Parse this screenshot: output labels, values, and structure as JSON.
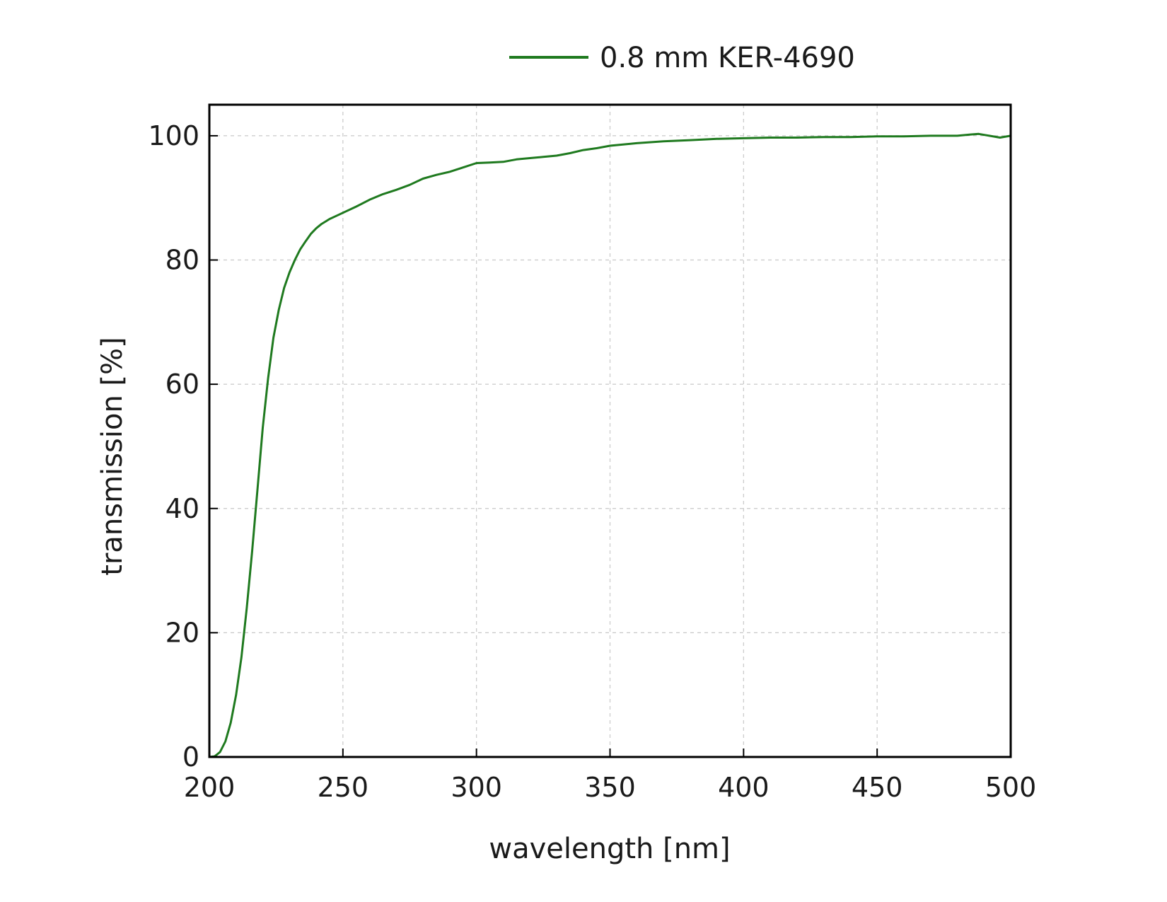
{
  "chart_data": {
    "type": "line",
    "title": "",
    "xlabel": "wavelength [nm]",
    "ylabel": "transmission [%]",
    "xlim": [
      200,
      500
    ],
    "ylim": [
      0,
      105
    ],
    "xticks": [
      200,
      250,
      300,
      350,
      400,
      450,
      500
    ],
    "yticks": [
      0,
      20,
      40,
      60,
      80,
      100
    ],
    "grid": true,
    "grid_style": "dashed",
    "legend_position": "top-center",
    "series": [
      {
        "name": "0.8 mm KER-4690",
        "color": "#1f7a1f",
        "x": [
          200,
          202,
          204,
          206,
          208,
          210,
          212,
          214,
          216,
          218,
          220,
          222,
          224,
          226,
          228,
          230,
          232,
          234,
          236,
          238,
          240,
          242,
          245,
          248,
          250,
          255,
          260,
          265,
          270,
          275,
          280,
          285,
          290,
          295,
          300,
          305,
          310,
          315,
          320,
          325,
          330,
          335,
          340,
          345,
          350,
          360,
          370,
          380,
          390,
          400,
          410,
          420,
          430,
          440,
          450,
          460,
          470,
          480,
          485,
          488,
          492,
          496,
          500
        ],
        "y": [
          0,
          0.1,
          0.8,
          2.5,
          5.5,
          10,
          16,
          24,
          33,
          43,
          53,
          61,
          67.5,
          72,
          75.5,
          78,
          80,
          81.7,
          83,
          84.2,
          85.1,
          85.8,
          86.6,
          87.2,
          87.6,
          88.6,
          89.7,
          90.6,
          91.3,
          92.1,
          93.1,
          93.7,
          94.2,
          94.9,
          95.6,
          95.7,
          95.8,
          96.2,
          96.4,
          96.6,
          96.8,
          97.2,
          97.7,
          98.0,
          98.4,
          98.8,
          99.1,
          99.3,
          99.5,
          99.6,
          99.7,
          99.7,
          99.8,
          99.8,
          99.9,
          99.9,
          100.0,
          100.0,
          100.2,
          100.3,
          100.0,
          99.7,
          100.0
        ]
      }
    ]
  }
}
